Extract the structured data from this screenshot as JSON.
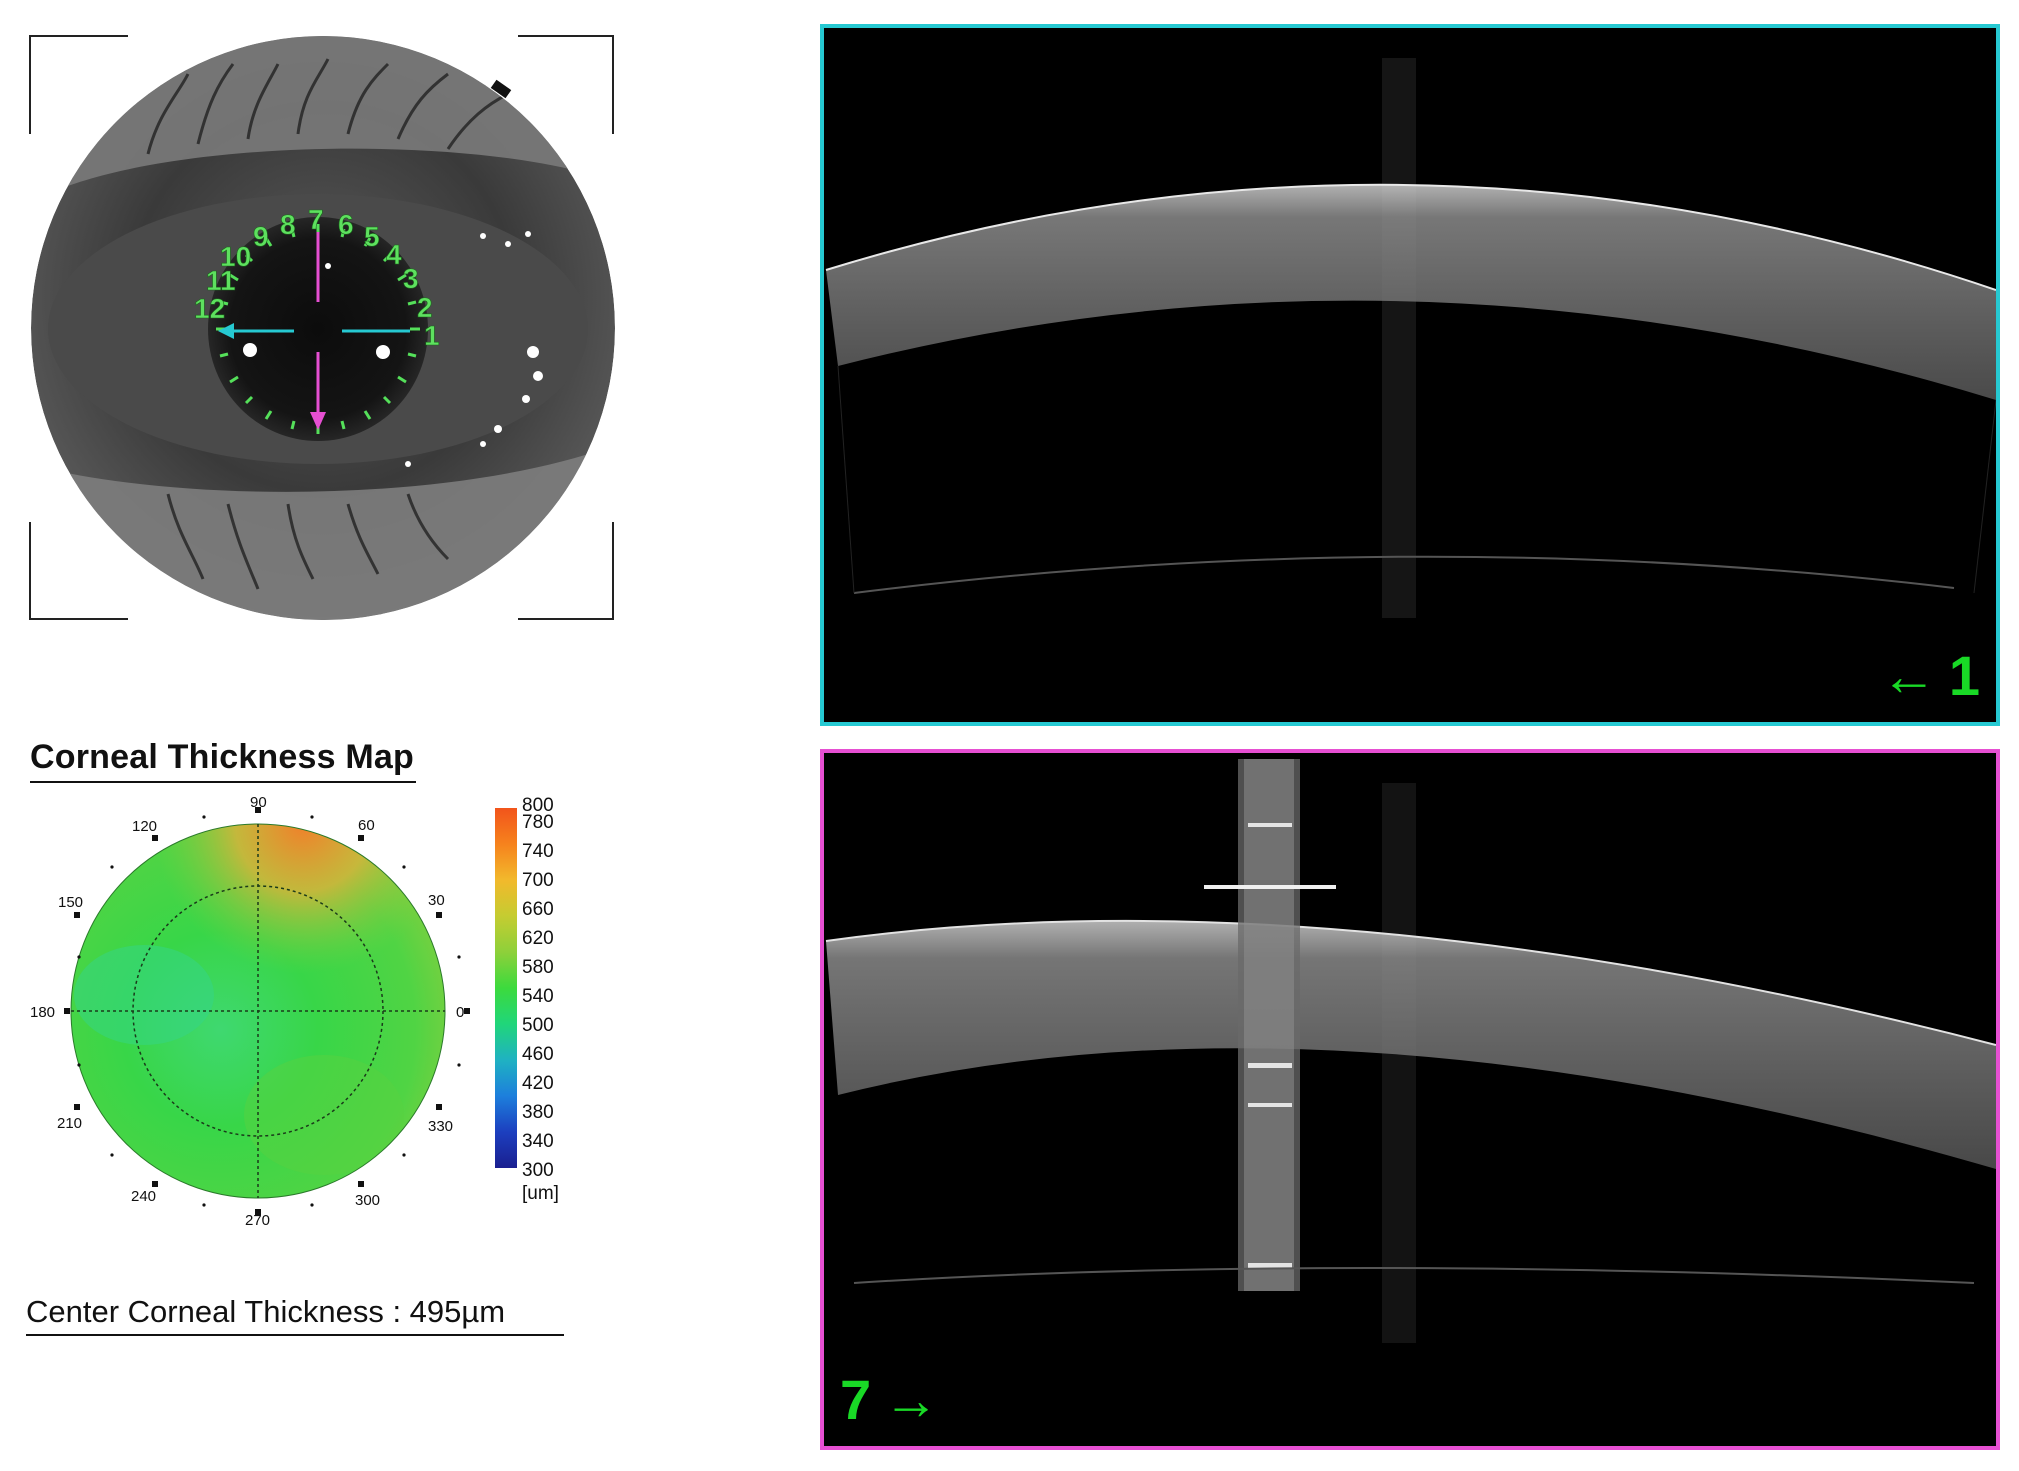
{
  "eye_image": {
    "clock_positions": [
      "1",
      "2",
      "3",
      "4",
      "5",
      "6",
      "7",
      "8",
      "9",
      "10",
      "11",
      "12"
    ]
  },
  "thickness_map": {
    "title": "Corneal Thickness Map",
    "angle_labels": [
      "90",
      "60",
      "30",
      "0",
      "330",
      "300",
      "270",
      "240",
      "210",
      "180",
      "150",
      "120"
    ],
    "scale_ticks": [
      "800",
      "780",
      "740",
      "700",
      "660",
      "620",
      "580",
      "540",
      "500",
      "460",
      "420",
      "380",
      "340",
      "300"
    ],
    "unit": "[um]",
    "colors": {
      "high": "#f2541b",
      "mid": "#3cda3d",
      "low": "#1a1f8f",
      "map_fill": "#44d648"
    }
  },
  "center_thickness": {
    "label": "Center Corneal Thickness",
    "separator": " : ",
    "value": "495µm"
  },
  "scans": [
    {
      "label": "1",
      "direction": "left-arrow",
      "frame_color": "#26c9d2"
    },
    {
      "label": "7",
      "direction": "right-arrow",
      "frame_color": "#e64fd2"
    }
  ]
}
